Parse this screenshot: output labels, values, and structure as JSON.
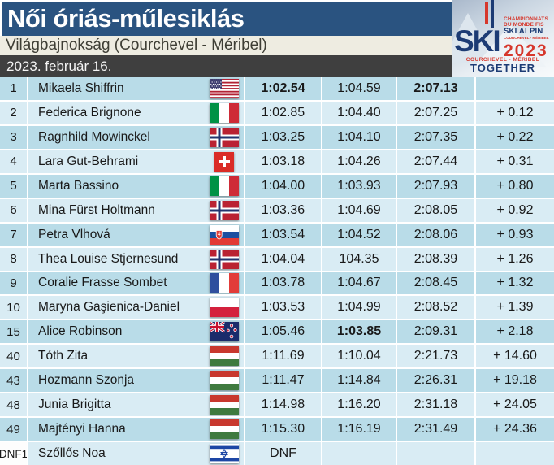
{
  "header": {
    "title": "Női óriás-műlesiklás",
    "subtitle": "Világbajnokság (Courchevel - Méribel)",
    "date": "2023. február 16."
  },
  "logo": {
    "ski": "SKI",
    "championnats": "CHAMPIONNATS",
    "du_monde_fis": "DU MONDE FIS",
    "ski_alpin": "SKI ALPIN",
    "venue_small": "COURCHEVEL - MÉRIBEL",
    "year": "2023",
    "venue": "COURCHEVEL - MÉRIBEL",
    "together": "TOGETHER"
  },
  "colors": {
    "title_bg": "#2A5380",
    "subtitle_bg": "#EEECE1",
    "date_bg": "#3F3F3F",
    "row_dark": "#B9DCE8",
    "row_light": "#D9ECF4",
    "logo_navy": "#1C3B74",
    "logo_red": "#D6372C"
  },
  "table": {
    "rows": [
      {
        "rank": "1",
        "name": "Mikaela Shiffrin",
        "flag": "us",
        "run1": "1:02.54",
        "run2": "1:04.59",
        "total": "2:07.13",
        "gap": "",
        "bold": [
          "run1",
          "total"
        ]
      },
      {
        "rank": "2",
        "name": "Federica Brignone",
        "flag": "it",
        "run1": "1:02.85",
        "run2": "1:04.40",
        "total": "2:07.25",
        "gap": "+ 0.12"
      },
      {
        "rank": "3",
        "name": "Ragnhild Mowinckel",
        "flag": "no",
        "run1": "1:03.25",
        "run2": "1:04.10",
        "total": "2:07.35",
        "gap": "+ 0.22"
      },
      {
        "rank": "4",
        "name": "Lara Gut-Behrami",
        "flag": "ch",
        "run1": "1:03.18",
        "run2": "1:04.26",
        "total": "2:07.44",
        "gap": "+ 0.31"
      },
      {
        "rank": "5",
        "name": "Marta Bassino",
        "flag": "it",
        "run1": "1:04.00",
        "run2": "1:03.93",
        "total": "2:07.93",
        "gap": "+ 0.80"
      },
      {
        "rank": "6",
        "name": "Mina Fürst Holtmann",
        "flag": "no",
        "run1": "1:03.36",
        "run2": "1:04.69",
        "total": "2:08.05",
        "gap": "+ 0.92"
      },
      {
        "rank": "7",
        "name": "Petra Vlhová",
        "flag": "sk",
        "run1": "1:03.54",
        "run2": "1:04.52",
        "total": "2:08.06",
        "gap": "+ 0.93"
      },
      {
        "rank": "8",
        "name": "Thea Louise Stjernesund",
        "flag": "no",
        "run1": "1:04.04",
        "run2": "104.35",
        "total": "2:08.39",
        "gap": "+ 1.26"
      },
      {
        "rank": "9",
        "name": "Coralie Frasse Sombet",
        "flag": "fr",
        "run1": "1:03.78",
        "run2": "1:04.67",
        "total": "2:08.45",
        "gap": "+ 1.32"
      },
      {
        "rank": "10",
        "name": "Maryna Gaşienica-Daniel",
        "flag": "pl",
        "run1": "1:03.53",
        "run2": "1:04.99",
        "total": "2:08.52",
        "gap": "+ 1.39"
      },
      {
        "rank": "15",
        "name": "Alice Robinson",
        "flag": "nz",
        "run1": "1:05.46",
        "run2": "1:03.85",
        "total": "2:09.31",
        "gap": "+ 2.18",
        "bold": [
          "run2"
        ]
      },
      {
        "rank": "40",
        "name": "Tóth Zita",
        "flag": "hu",
        "run1": "1:11.69",
        "run2": "1:10.04",
        "total": "2:21.73",
        "gap": "+ 14.60"
      },
      {
        "rank": "43",
        "name": "Hozmann Szonja",
        "flag": "hu",
        "run1": "1:11.47",
        "run2": "1:14.84",
        "total": "2:26.31",
        "gap": "+ 19.18"
      },
      {
        "rank": "48",
        "name": "Junia Brigitta",
        "flag": "hu",
        "run1": "1:14.98",
        "run2": "1:16.20",
        "total": "2:31.18",
        "gap": "+ 24.05"
      },
      {
        "rank": "49",
        "name": "Majtényi Hanna",
        "flag": "hu",
        "run1": "1:15.30",
        "run2": "1:16.19",
        "total": "2:31.49",
        "gap": "+ 24.36"
      },
      {
        "rank": "DNF1",
        "name": "Szőllős Noa",
        "flag": "il",
        "run1": "DNF",
        "run2": "",
        "total": "",
        "gap": "",
        "rank_white": true
      }
    ]
  }
}
